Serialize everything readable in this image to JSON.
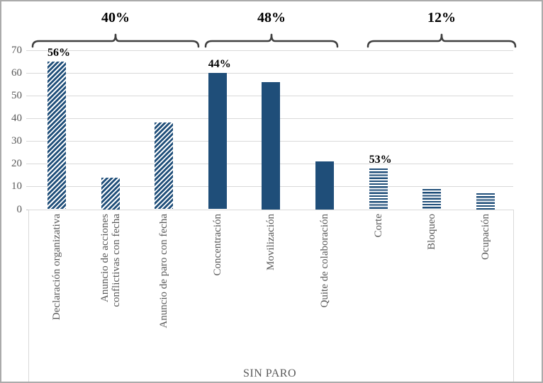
{
  "chart_data": {
    "type": "bar",
    "title": "",
    "xlabel": "SIN PARO",
    "ylabel": "",
    "ylim": [
      0,
      70
    ],
    "yticks": [
      0,
      10,
      20,
      30,
      40,
      50,
      60,
      70
    ],
    "grid": true,
    "legend": false,
    "categories": [
      "Declaración organizativa",
      "Anuncio de acciones\nconflictivas con fecha",
      "Anuncio de paro con fecha",
      "Concentración",
      "Movilización",
      "Quite de colaboración",
      "Corte",
      "Bloqueo",
      "Ocupación"
    ],
    "values": [
      65,
      14,
      38,
      60,
      56,
      21,
      18,
      9,
      7
    ],
    "bar_patterns": [
      "diagonal-hatch",
      "diagonal-hatch",
      "diagonal-hatch",
      "solid",
      "solid",
      "solid",
      "horizontal-stripes",
      "horizontal-stripes",
      "horizontal-stripes"
    ],
    "bar_value_labels": [
      {
        "bar_index": 0,
        "text": "56%"
      },
      {
        "bar_index": 3,
        "text": "44%"
      },
      {
        "bar_index": 6,
        "text": "53%"
      }
    ],
    "group_brackets": [
      {
        "label": "40%",
        "first_bar": 0,
        "last_bar": 2
      },
      {
        "label": "48%",
        "first_bar": 3,
        "last_bar": 5
      },
      {
        "label": "12%",
        "first_bar": 6,
        "last_bar": 8
      }
    ],
    "colors": {
      "bar_fill": "#1F4E79",
      "axis_text": "#595959",
      "gridline": "#D9D9D9",
      "bracket": "#3F3F3F",
      "value_label": "#000000"
    }
  }
}
